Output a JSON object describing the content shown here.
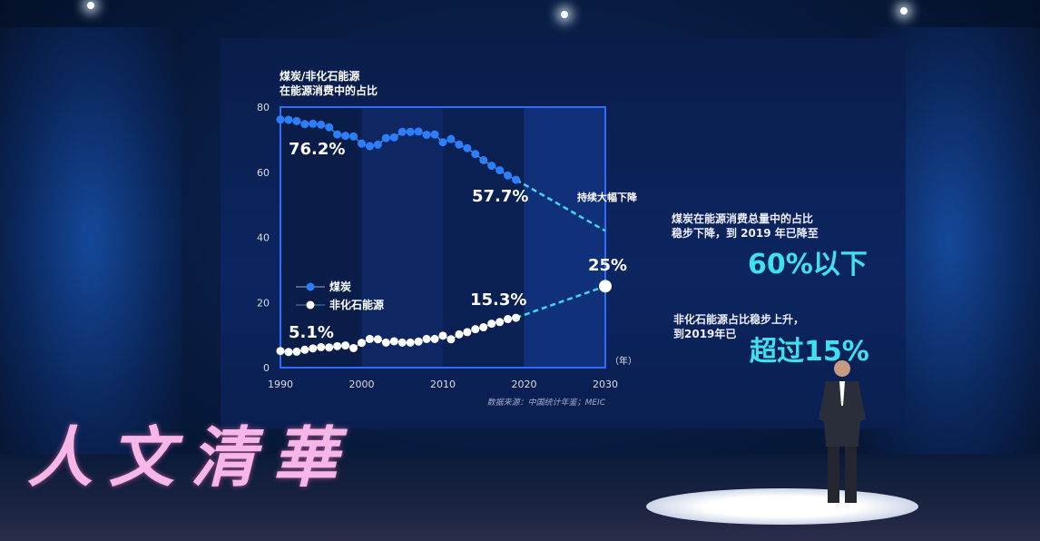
{
  "chart_data": {
    "type": "line",
    "title": "煤炭/非化石能源\n在能源消费中的占比",
    "title_lines": [
      "煤炭/非化石能源",
      "在能源消费中的占比"
    ],
    "xlabel": "（年）",
    "ylabel": "",
    "xlim": [
      1990,
      2030
    ],
    "ylim": [
      0,
      80
    ],
    "x_ticks": [
      "1990",
      "2000",
      "2010",
      "2020",
      "2030"
    ],
    "y_ticks": [
      "0",
      "20",
      "40",
      "60",
      "80"
    ],
    "legend_position": "lower-left",
    "x": [
      1990,
      1991,
      1992,
      1993,
      1994,
      1995,
      1996,
      1997,
      1998,
      1999,
      2000,
      2001,
      2002,
      2003,
      2004,
      2005,
      2006,
      2007,
      2008,
      2009,
      2010,
      2011,
      2012,
      2013,
      2014,
      2015,
      2016,
      2017,
      2018,
      2019
    ],
    "series": [
      {
        "name": "煤炭",
        "color": "#2b7fff",
        "values": [
          76.2,
          76.1,
          75.7,
          74.8,
          74.9,
          74.6,
          73.8,
          71.6,
          71.2,
          71.0,
          68.8,
          68.0,
          68.5,
          70.5,
          70.7,
          72.4,
          72.4,
          72.5,
          71.5,
          71.6,
          69.2,
          70.2,
          68.5,
          67.4,
          65.6,
          63.7,
          62.0,
          60.6,
          59.0,
          57.7
        ],
        "projection": {
          "x": [
            2019,
            2030
          ],
          "values": [
            57.7,
            42
          ],
          "style": "dashed"
        }
      },
      {
        "name": "非化石能源",
        "color": "#ffffff",
        "values": [
          5.1,
          4.8,
          4.9,
          5.5,
          5.9,
          6.3,
          6.2,
          6.6,
          6.8,
          6.0,
          7.6,
          8.8,
          8.7,
          7.7,
          8.1,
          7.7,
          7.7,
          8.0,
          8.8,
          8.8,
          9.8,
          8.7,
          10.2,
          10.9,
          11.8,
          12.4,
          13.5,
          14.0,
          14.9,
          15.3
        ],
        "projection": {
          "x": [
            2019,
            2030
          ],
          "values": [
            15.3,
            25
          ],
          "style": "dashed"
        }
      }
    ],
    "annotations": [
      "76.2%",
      "57.7%",
      "5.1%",
      "15.3%",
      "25%",
      "持续大幅下降"
    ],
    "source": "数据来源：中国统计年鉴；MEIC"
  },
  "side_text": {
    "coal_note": "煤炭在能源消费总量中的占比稳步下降，到 2019 年已降至",
    "coal_big": "60%以下",
    "nonfossil_note": "非化石能源占比稳步上升，到2019年已",
    "nonfossil_big": "超过15%"
  },
  "logo": "人文清華",
  "colors": {
    "accent": "#3fe0f0",
    "coal": "#2b7fff",
    "axis": "#2e6bff"
  }
}
